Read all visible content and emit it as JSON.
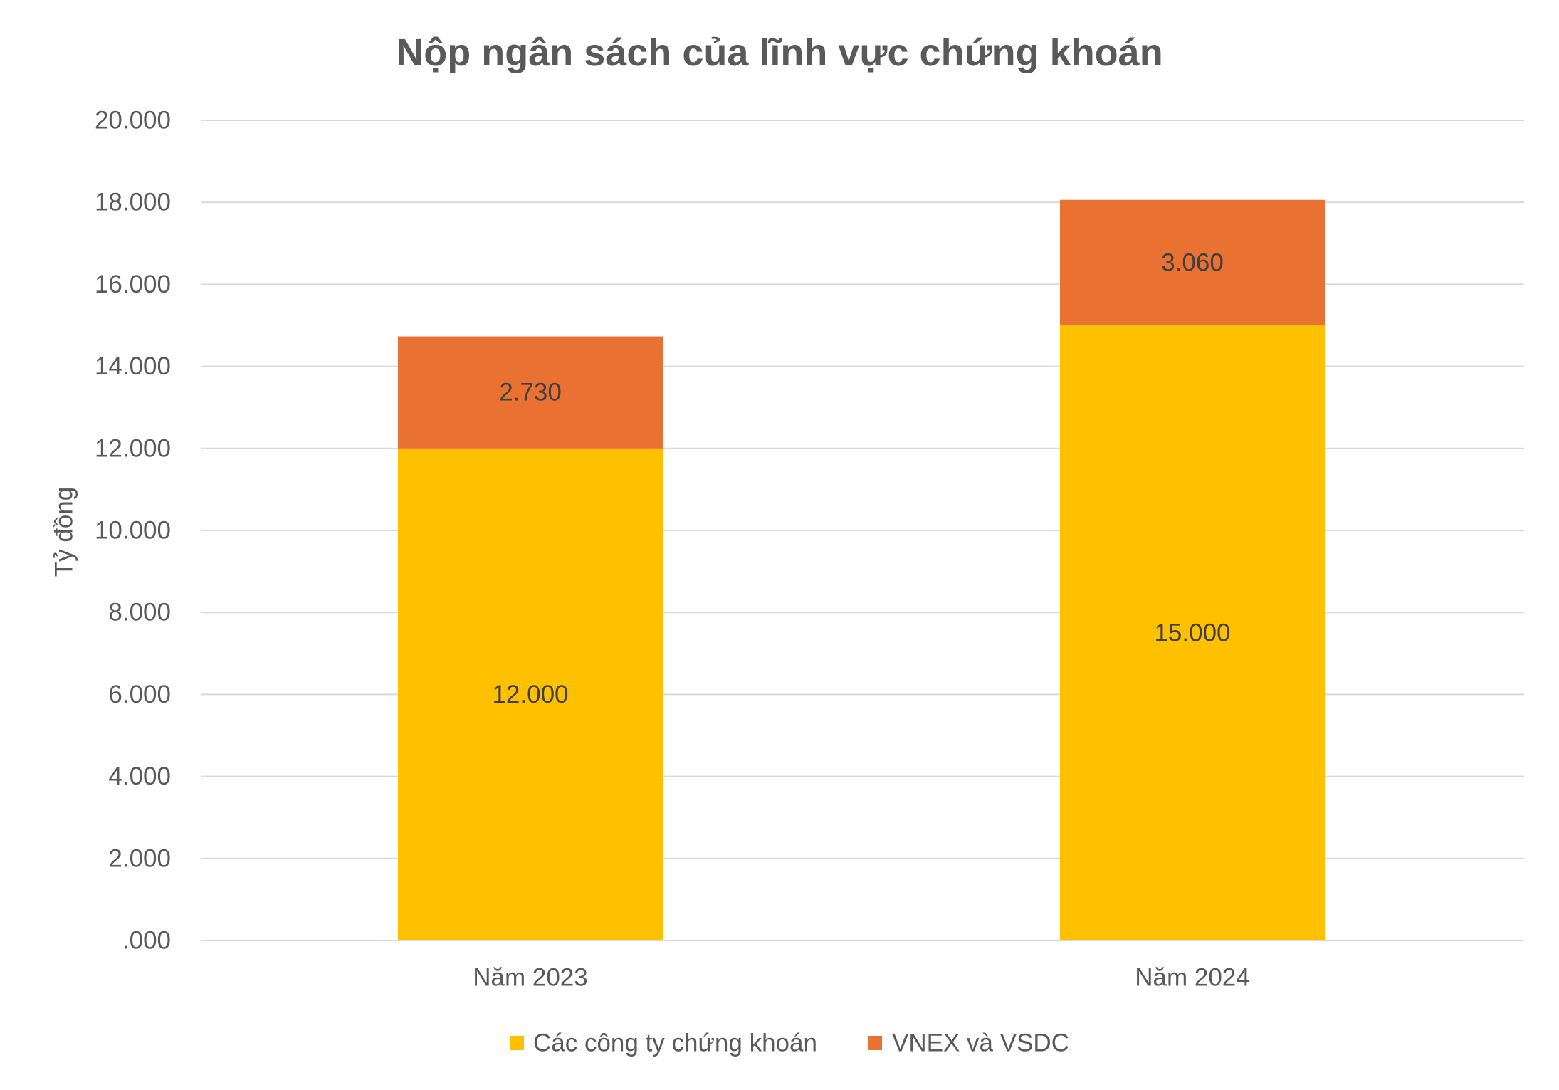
{
  "chart_data": {
    "type": "bar",
    "stacked": true,
    "title": "Nộp ngân sách của lĩnh vực chứng khoán",
    "xlabel": "",
    "ylabel": "Tỷ đồng",
    "categories": [
      "Năm 2023",
      "Năm 2024"
    ],
    "series": [
      {
        "name": "Các công ty chứng khoán",
        "values": [
          12000,
          15000
        ],
        "data_labels": [
          "12.000",
          "15.000"
        ],
        "color": "#FFC000"
      },
      {
        "name": "VNEX và VSDC",
        "values": [
          2730,
          3060
        ],
        "data_labels": [
          "2.730",
          "3.060"
        ],
        "color": "#E97132"
      }
    ],
    "ylim": [
      0,
      20000
    ],
    "yticks": [
      0,
      2000,
      4000,
      6000,
      8000,
      10000,
      12000,
      14000,
      16000,
      18000,
      20000
    ],
    "ytick_labels": [
      ".000",
      "2.000",
      "4.000",
      "6.000",
      "8.000",
      "10.000",
      "12.000",
      "14.000",
      "16.000",
      "18.000",
      "20.000"
    ],
    "grid": true,
    "legend": "bottom"
  }
}
